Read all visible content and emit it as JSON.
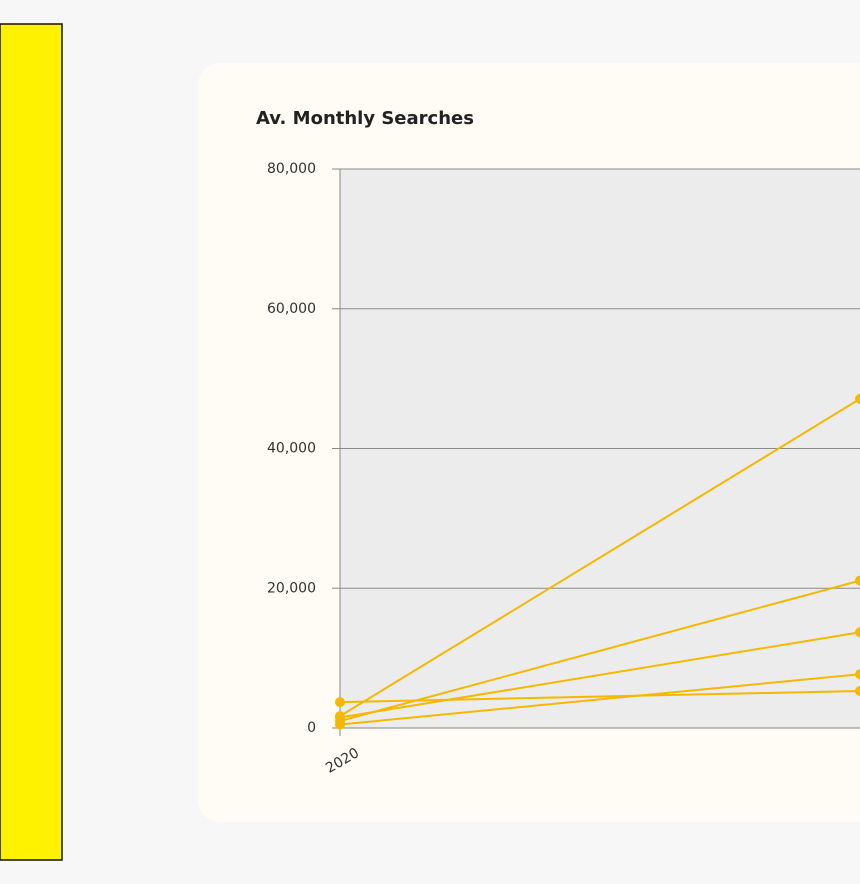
{
  "chart_data": {
    "type": "line",
    "title": "Av. Monthly Searches",
    "categories": [
      "2020",
      null
    ],
    "series": [
      {
        "color": "#f5b800",
        "values": [
          1700,
          47100
        ]
      },
      {
        "color": "#f5b800",
        "values": [
          1000,
          21100
        ]
      },
      {
        "color": "#f5b800",
        "values": [
          1500,
          13700
        ]
      },
      {
        "color": "#f5b800",
        "values": [
          500,
          7700
        ]
      },
      {
        "color": "#f5b800",
        "values": [
          3700,
          5300
        ]
      }
    ],
    "ylim": [
      0,
      80000
    ],
    "yticks": [
      0,
      {
        "value": 20000,
        "label": "20,000"
      },
      {
        "value": 40000,
        "label": "40,000"
      },
      {
        "value": 60000,
        "label": "60,000"
      },
      {
        "value": 80000,
        "label": "80,000"
      }
    ],
    "grid": true
  }
}
